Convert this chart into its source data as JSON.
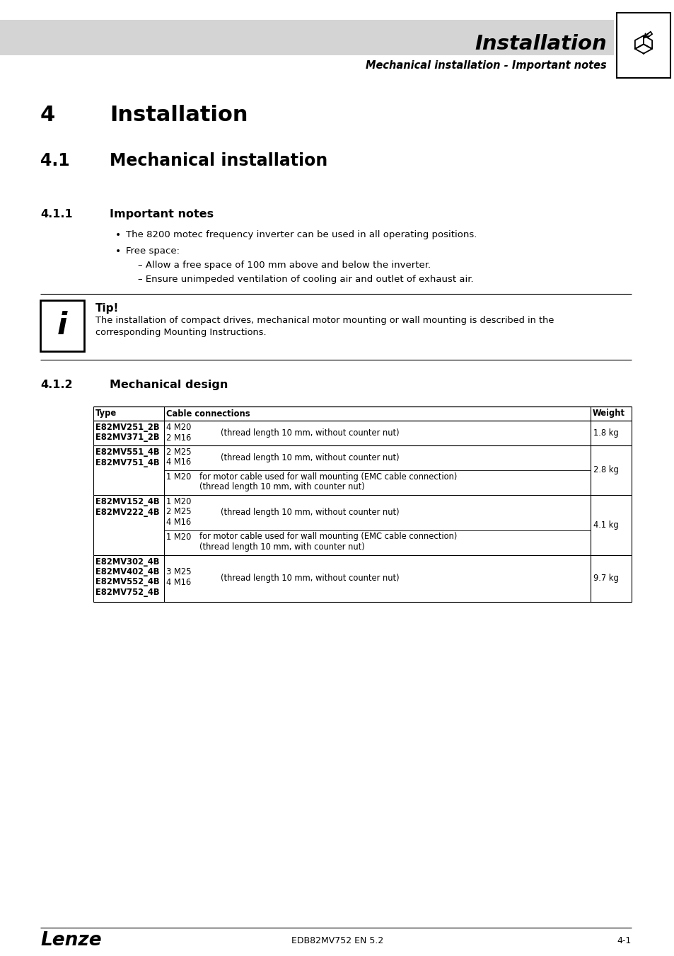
{
  "page_bg": "#ffffff",
  "header_bg": "#d4d4d4",
  "header_title": "Installation",
  "header_subtitle": "Mechanical installation - Important notes",
  "section_num": "4",
  "section_title": "Installation",
  "subsection_num": "4.1",
  "subsection_title": "Mechanical installation",
  "sub2_num": "4.1.1",
  "sub2_title": "Important notes",
  "sub3_num": "4.1.2",
  "sub3_title": "Mechanical design",
  "bullet1": "The 8200 motec frequency inverter can be used in all operating positions.",
  "bullet2": "Free space:",
  "sub_bullet1": "Allow a free space of 100 mm above and below the inverter.",
  "sub_bullet2": "Ensure unimpeded ventilation of cooling air and outlet of exhaust air.",
  "tip_title": "Tip!",
  "tip_line1": "The installation of compact drives, mechanical motor mounting or wall mounting is described in the",
  "tip_line2": "corresponding Mounting Instructions.",
  "footer_left": "Lenze",
  "footer_center": "EDB82MV752 EN 5.2",
  "footer_right": "4-1",
  "table_headers": [
    "Type",
    "Cable connections",
    "Weight"
  ]
}
